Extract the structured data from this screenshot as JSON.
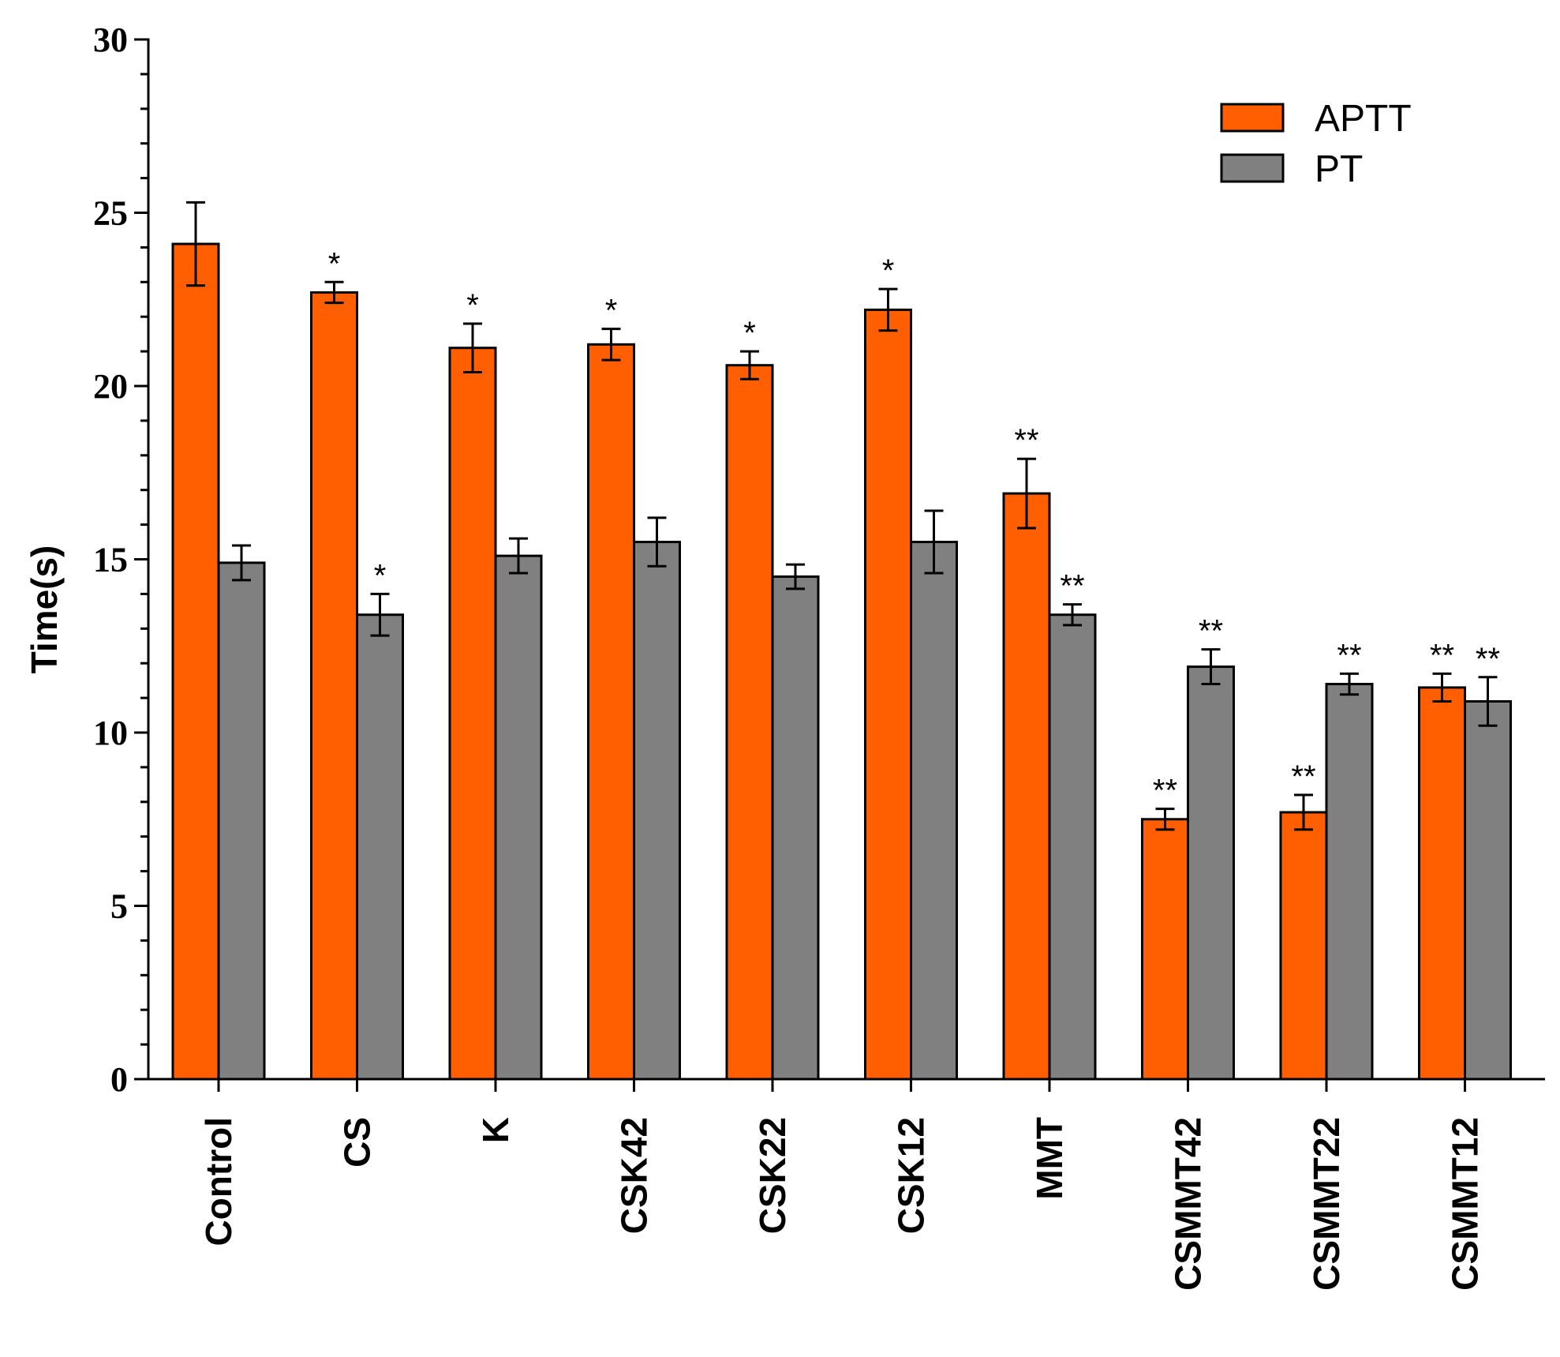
{
  "chart_data": {
    "type": "bar",
    "title": "",
    "xlabel": "",
    "ylabel": "Time(s)",
    "ylim": [
      0,
      30
    ],
    "yticks": [
      0,
      5,
      10,
      15,
      20,
      25,
      30
    ],
    "legend_position": "top-right",
    "categories": [
      "Control",
      "CS",
      "K",
      "CSK42",
      "CSK22",
      "CSK12",
      "MMT",
      "CSMMT42",
      "CSMMT22",
      "CSMMT12"
    ],
    "series": [
      {
        "name": "APTT",
        "color": "#ff5f00",
        "values": [
          24.1,
          22.7,
          21.1,
          21.2,
          20.6,
          22.2,
          16.9,
          7.5,
          7.7,
          11.3
        ],
        "errors": [
          1.2,
          0.3,
          0.7,
          0.45,
          0.4,
          0.6,
          1.0,
          0.3,
          0.5,
          0.4
        ],
        "significance": [
          "",
          "*",
          "*",
          "*",
          "*",
          "*",
          "**",
          "**",
          "**",
          "**"
        ]
      },
      {
        "name": "PT",
        "color": "#808080",
        "values": [
          14.9,
          13.4,
          15.1,
          15.5,
          14.5,
          15.5,
          13.4,
          11.9,
          11.4,
          10.9
        ],
        "errors": [
          0.5,
          0.6,
          0.5,
          0.7,
          0.35,
          0.9,
          0.3,
          0.5,
          0.3,
          0.7
        ],
        "significance": [
          "",
          "*",
          "",
          "",
          "",
          "",
          "**",
          "**",
          "**",
          "**"
        ]
      }
    ]
  }
}
